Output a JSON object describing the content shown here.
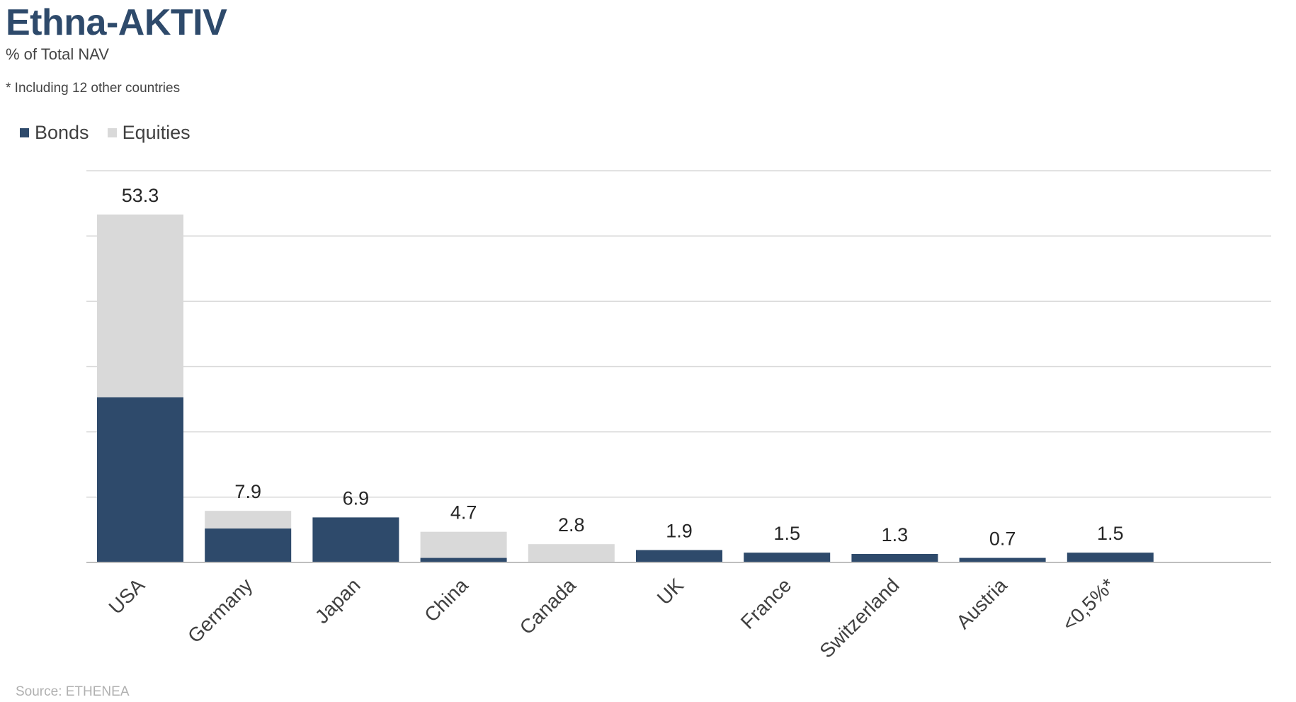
{
  "header": {
    "title": "Ethna-AKTIV",
    "subtitle": "% of Total NAV",
    "note": "* Including 12 other countries"
  },
  "source": "Source: ETHENEA",
  "colors": {
    "bonds": "#2e4a6b",
    "equities": "#d9d9d9",
    "grid": "#d9d9d9",
    "axis": "#bfbfbf"
  },
  "chart_data": {
    "type": "bar",
    "stacked": true,
    "categories": [
      "USA",
      "Germany",
      "Japan",
      "China",
      "Canada",
      "UK",
      "France",
      "Switzerland",
      "Austria",
      "<0,5%*"
    ],
    "series": [
      {
        "name": "Bonds",
        "values": [
          25.3,
          5.2,
          6.9,
          0.7,
          0.0,
          1.9,
          1.5,
          1.3,
          0.7,
          1.5
        ]
      },
      {
        "name": "Equities",
        "values": [
          28.0,
          2.7,
          0.0,
          4.0,
          2.8,
          0.0,
          0.0,
          0.0,
          0.0,
          0.0
        ]
      }
    ],
    "totals": [
      "53.3",
      "7.9",
      "6.9",
      "4.7",
      "2.8",
      "1.9",
      "1.5",
      "1.3",
      "0.7",
      "1.5"
    ],
    "ylim": [
      0,
      60
    ],
    "grid": true,
    "legend": "top-left",
    "xlabel": "",
    "ylabel": ""
  }
}
